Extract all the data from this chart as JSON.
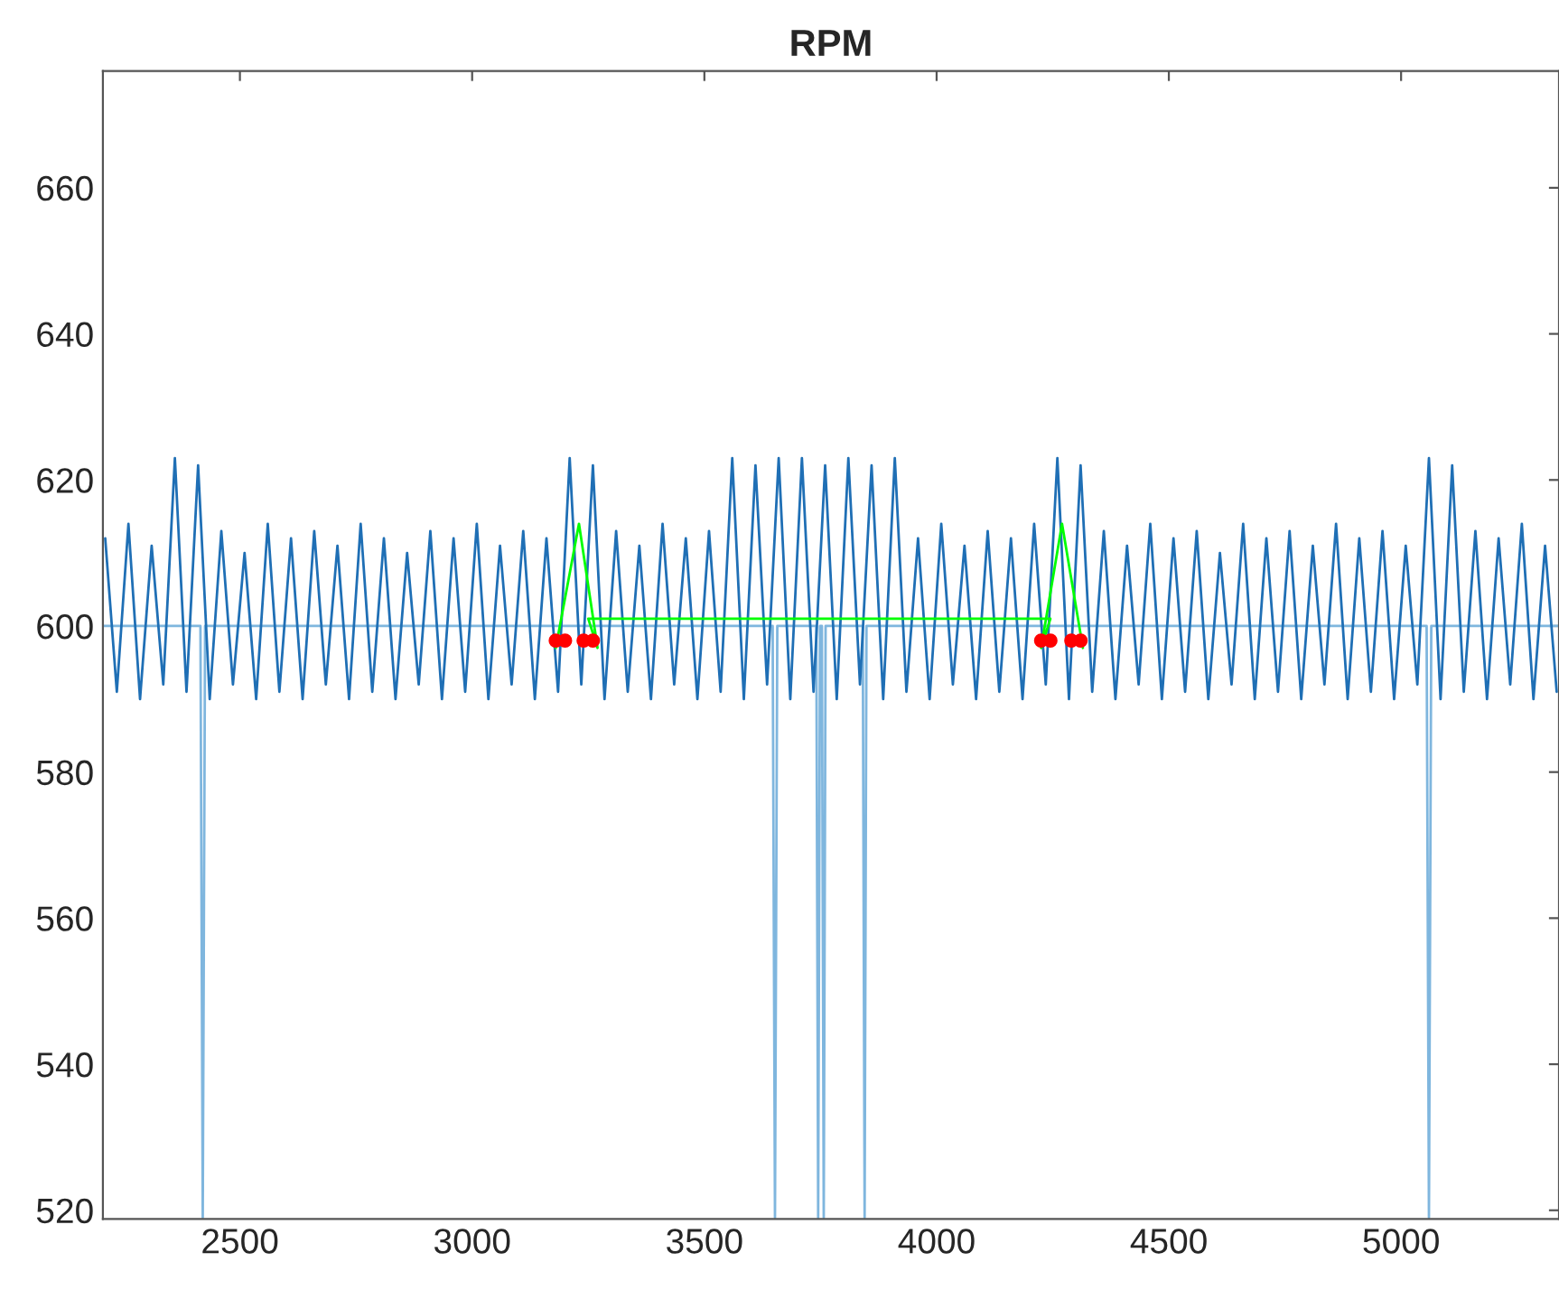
{
  "chart_data": {
    "type": "line",
    "title": "RPM",
    "xlim": [
      2205,
      5340
    ],
    "xticks": [
      2500,
      3000,
      3500,
      4000,
      4500,
      5000
    ],
    "ylim": [
      518.8,
      676
    ],
    "yticks": [
      520,
      540,
      560,
      580,
      600,
      620,
      640,
      660
    ],
    "grid": false,
    "series": [
      {
        "color": "#7fb6de",
        "x": [
          2205,
          2415,
          2420,
          2425,
          3647,
          3652,
          3657,
          3741,
          3745,
          3749,
          3753,
          3757,
          3761,
          3841,
          3845,
          3849,
          5055,
          5060,
          5065,
          5340
        ],
        "values": [
          600,
          600,
          519,
          600,
          600,
          519,
          600,
          600,
          519,
          600,
          600,
          519,
          600,
          600,
          519,
          600,
          600,
          519,
          600,
          600
        ]
      },
      {
        "color": "#1f6fb5",
        "x": [
          2210,
          2235,
          2260,
          2285,
          2310,
          2335,
          2360,
          2385,
          2410,
          2435,
          2460,
          2485,
          2510,
          2535,
          2560,
          2585,
          2610,
          2635,
          2660,
          2685,
          2710,
          2735,
          2760,
          2785,
          2810,
          2835,
          2860,
          2885,
          2910,
          2935,
          2960,
          2985,
          3010,
          3035,
          3060,
          3085,
          3110,
          3135,
          3160,
          3185,
          3210,
          3235,
          3260,
          3285,
          3310,
          3335,
          3360,
          3385,
          3410,
          3435,
          3460,
          3485,
          3510,
          3535,
          3560,
          3585,
          3610,
          3635,
          3660,
          3685,
          3710,
          3735,
          3760,
          3785,
          3810,
          3835,
          3860,
          3885,
          3910,
          3935,
          3960,
          3985,
          4010,
          4035,
          4060,
          4085,
          4110,
          4135,
          4160,
          4185,
          4210,
          4235,
          4260,
          4285,
          4310,
          4335,
          4360,
          4385,
          4410,
          4435,
          4460,
          4485,
          4510,
          4535,
          4560,
          4585,
          4610,
          4635,
          4660,
          4685,
          4710,
          4735,
          4760,
          4785,
          4810,
          4835,
          4860,
          4885,
          4910,
          4935,
          4960,
          4985,
          5010,
          5035,
          5060,
          5085,
          5110,
          5135,
          5160,
          5185,
          5210,
          5235,
          5260,
          5285,
          5310,
          5335
        ],
        "values": [
          612,
          591,
          614,
          590,
          611,
          592,
          623,
          591,
          622,
          590,
          613,
          592,
          610,
          590,
          614,
          591,
          612,
          590,
          613,
          592,
          611,
          590,
          614,
          591,
          612,
          590,
          610,
          592,
          613,
          590,
          612,
          591,
          614,
          590,
          611,
          592,
          613,
          590,
          612,
          591,
          623,
          592,
          622,
          590,
          613,
          591,
          611,
          590,
          614,
          592,
          612,
          590,
          613,
          591,
          623,
          590,
          622,
          592,
          623,
          590,
          623,
          591,
          622,
          590,
          623,
          592,
          622,
          590,
          623,
          591,
          612,
          590,
          614,
          592,
          611,
          590,
          613,
          591,
          612,
          590,
          614,
          592,
          623,
          590,
          622,
          591,
          613,
          590,
          611,
          592,
          614,
          590,
          612,
          591,
          613,
          590,
          610,
          592,
          614,
          590,
          612,
          591,
          613,
          590,
          611,
          592,
          614,
          590,
          612,
          591,
          613,
          590,
          611,
          592,
          623,
          590,
          622,
          591,
          613,
          590,
          612,
          592,
          614,
          590,
          611,
          591
        ]
      },
      {
        "color": "#00ff00",
        "x": [
          3180,
          3230,
          3270,
          3250,
          4245,
          4225,
          4270,
          4315
        ],
        "values": [
          597,
          614,
          597,
          601,
          601,
          597,
          614,
          597
        ]
      },
      {
        "type": "scatter",
        "color": "#ff0000",
        "marker": "circle",
        "x": [
          3180,
          3200,
          3240,
          3260,
          4225,
          4245,
          4290,
          4310
        ],
        "values": [
          598,
          598,
          598,
          598,
          598,
          598,
          598,
          598
        ]
      }
    ]
  }
}
